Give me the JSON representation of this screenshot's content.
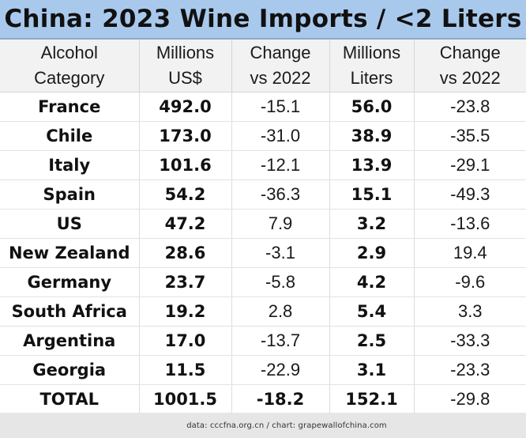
{
  "title": "China: 2023 Wine Imports / <2 Liters",
  "header": {
    "col1": [
      "Alcohol",
      "Category"
    ],
    "col2": [
      "Millions",
      "US$"
    ],
    "col3": [
      "Change",
      "vs 2022"
    ],
    "col4": [
      "Millions",
      "Liters"
    ],
    "col5": [
      "Change",
      "vs 2022"
    ]
  },
  "rows": [
    {
      "category": "France",
      "usd": "492.0",
      "usd_change": "-15.1",
      "liters": "56.0",
      "liters_change": "-23.8"
    },
    {
      "category": "Chile",
      "usd": "173.0",
      "usd_change": "-31.0",
      "liters": "38.9",
      "liters_change": "-35.5"
    },
    {
      "category": "Italy",
      "usd": "101.6",
      "usd_change": "-12.1",
      "liters": "13.9",
      "liters_change": "-29.1"
    },
    {
      "category": "Spain",
      "usd": "54.2",
      "usd_change": "-36.3",
      "liters": "15.1",
      "liters_change": "-49.3"
    },
    {
      "category": "US",
      "usd": "47.2",
      "usd_change": "7.9",
      "liters": "3.2",
      "liters_change": "-13.6"
    },
    {
      "category": "New Zealand",
      "usd": "28.6",
      "usd_change": "-3.1",
      "liters": "2.9",
      "liters_change": "19.4"
    },
    {
      "category": "Germany",
      "usd": "23.7",
      "usd_change": "-5.8",
      "liters": "4.2",
      "liters_change": "-9.6"
    },
    {
      "category": "South Africa",
      "usd": "19.2",
      "usd_change": "2.8",
      "liters": "5.4",
      "liters_change": "3.3"
    },
    {
      "category": "Argentina",
      "usd": "17.0",
      "usd_change": "-13.7",
      "liters": "2.5",
      "liters_change": "-33.3"
    },
    {
      "category": "Georgia",
      "usd": "11.5",
      "usd_change": "-22.9",
      "liters": "3.1",
      "liters_change": "-23.3"
    },
    {
      "category": "TOTAL",
      "usd": "1001.5",
      "usd_change": "-18.2",
      "liters": "152.1",
      "liters_change": "-29.8"
    }
  ],
  "footer": "data: cccfna.org.cn / chart: grapewallofchina.com",
  "colors": {
    "title_background": "#a9c9ec",
    "header_background": "#f2f2f2",
    "footer_background": "#e6e6e6"
  }
}
